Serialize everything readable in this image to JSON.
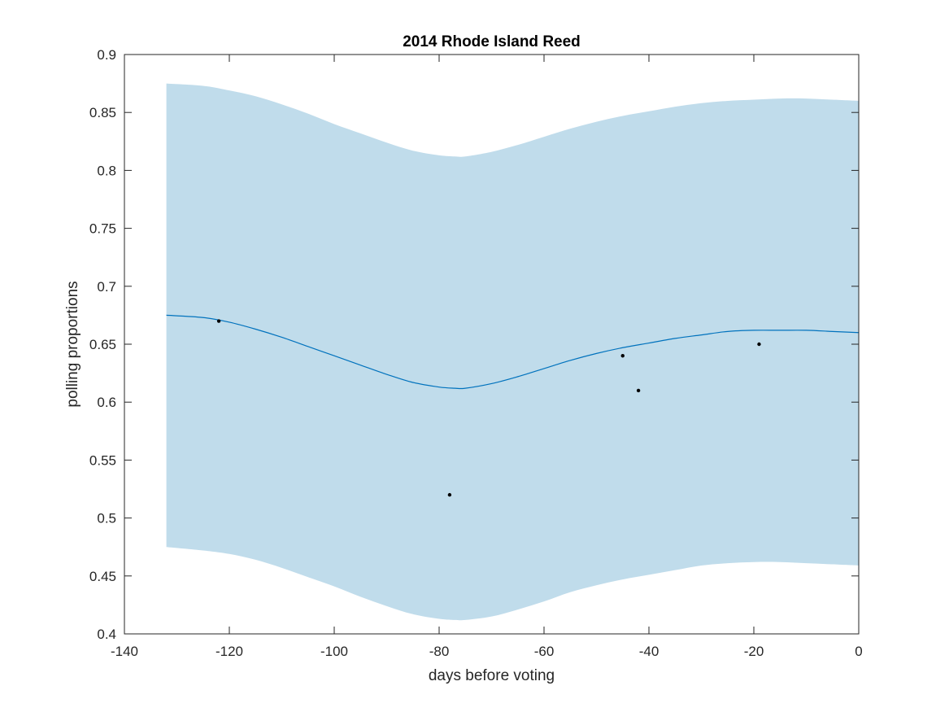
{
  "chart_data": {
    "type": "line",
    "title": "2014 Rhode Island Reed",
    "xlabel": "days before voting",
    "ylabel": "polling proportions",
    "xlim": [
      -140,
      0
    ],
    "ylim": [
      0.4,
      0.9
    ],
    "xticks": [
      -140,
      -120,
      -100,
      -80,
      -60,
      -40,
      -20,
      0
    ],
    "yticks": [
      0.4,
      0.45,
      0.5,
      0.55,
      0.6,
      0.65,
      0.7,
      0.75,
      0.8,
      0.85,
      0.9
    ],
    "xtick_labels": [
      "-140",
      "-120",
      "-100",
      "-80",
      "-60",
      "-40",
      "-20",
      "0"
    ],
    "ytick_labels": [
      "0.4",
      "0.45",
      "0.5",
      "0.55",
      "0.6",
      "0.65",
      "0.7",
      "0.75",
      "0.8",
      "0.85",
      "0.9"
    ],
    "grid": false,
    "series": [
      {
        "kind": "line",
        "color": "#0072bd",
        "x": [
          -132,
          -125,
          -120,
          -115,
          -110,
          -105,
          -100,
          -95,
          -90,
          -85,
          -80,
          -77,
          -75,
          -70,
          -65,
          -60,
          -55,
          -50,
          -45,
          -40,
          -35,
          -30,
          -25,
          -20,
          -15,
          -10,
          -5,
          0
        ],
        "y": [
          0.675,
          0.673,
          0.669,
          0.663,
          0.656,
          0.648,
          0.64,
          0.632,
          0.624,
          0.617,
          0.613,
          0.612,
          0.612,
          0.616,
          0.622,
          0.629,
          0.636,
          0.642,
          0.647,
          0.651,
          0.655,
          0.658,
          0.661,
          0.662,
          0.662,
          0.662,
          0.661,
          0.66
        ]
      },
      {
        "kind": "band",
        "color": "#c0dceb",
        "x": [
          -132,
          -125,
          -120,
          -115,
          -110,
          -105,
          -100,
          -95,
          -90,
          -85,
          -80,
          -77,
          -75,
          -70,
          -65,
          -60,
          -55,
          -50,
          -45,
          -40,
          -35,
          -30,
          -25,
          -20,
          -15,
          -10,
          -5,
          0
        ],
        "lower": [
          0.475,
          0.472,
          0.469,
          0.464,
          0.457,
          0.449,
          0.441,
          0.432,
          0.424,
          0.417,
          0.413,
          0.412,
          0.412,
          0.415,
          0.421,
          0.428,
          0.436,
          0.442,
          0.447,
          0.451,
          0.455,
          0.459,
          0.461,
          0.462,
          0.462,
          0.461,
          0.46,
          0.459
        ],
        "upper": [
          0.875,
          0.873,
          0.869,
          0.864,
          0.857,
          0.849,
          0.84,
          0.832,
          0.824,
          0.817,
          0.813,
          0.812,
          0.812,
          0.816,
          0.822,
          0.829,
          0.836,
          0.842,
          0.847,
          0.851,
          0.855,
          0.858,
          0.86,
          0.861,
          0.862,
          0.862,
          0.861,
          0.86
        ]
      },
      {
        "kind": "scatter",
        "color": "#000000",
        "x": [
          -122,
          -78,
          -45,
          -42,
          -19
        ],
        "y": [
          0.67,
          0.52,
          0.64,
          0.61,
          0.65
        ]
      }
    ]
  }
}
